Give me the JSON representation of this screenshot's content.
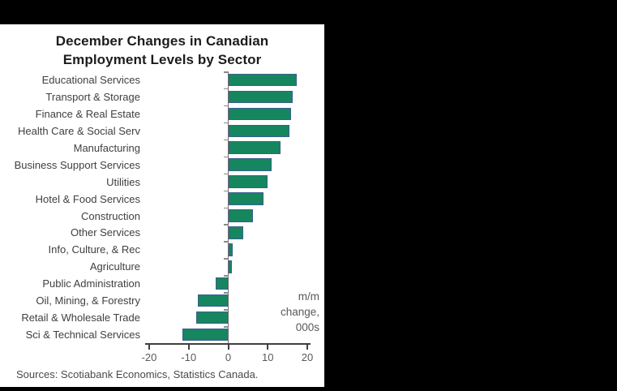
{
  "colors": {
    "frame": "#000000",
    "panel": "#ffffff",
    "bar_fill": "#16865F",
    "bar_border": "#3C6090",
    "axis": "#404040"
  },
  "chart_data": {
    "type": "bar",
    "orientation": "horizontal",
    "title_lines": [
      "December Changes in Canadian",
      "Employment Levels by Sector"
    ],
    "categories": [
      "Educational Services",
      "Transport & Storage",
      "Finance & Real Estate",
      "Health Care & Social Serv",
      "Manufacturing",
      "Business Support Services",
      "Utilities",
      "Hotel & Food Services",
      "Construction",
      "Other Services",
      "Info, Culture, & Rec",
      "Agriculture",
      "Public Administration",
      "Oil, Mining, & Forestry",
      "Retail & Wholesale Trade",
      "Sci & Technical Services"
    ],
    "values": [
      17.4,
      16.4,
      15.8,
      15.4,
      13.2,
      11.0,
      9.9,
      9.0,
      6.2,
      3.7,
      1.1,
      1.0,
      -3.1,
      -7.7,
      -8.2,
      -11.5
    ],
    "xlim": [
      -20,
      20
    ],
    "xticks": [
      -20,
      -10,
      0,
      10,
      20
    ],
    "grid": false,
    "annotation_lines": [
      "m/m",
      "change,",
      "000s"
    ]
  },
  "footer": {
    "sources": "Sources: Scotiabank Economics, Statistics Canada."
  }
}
